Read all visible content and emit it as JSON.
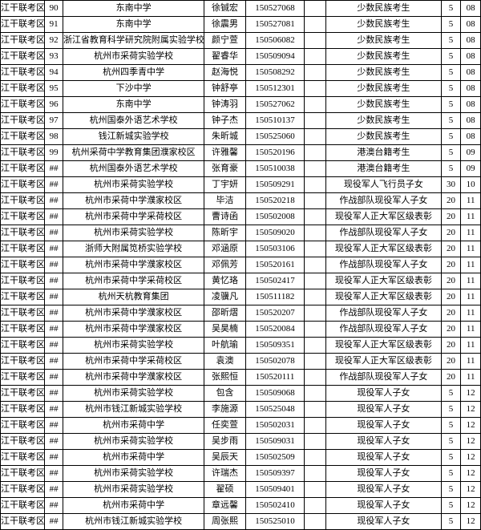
{
  "table": {
    "rows": [
      {
        "c0": "江干联考区",
        "c1": "90",
        "c2": "东南中学",
        "c3": "徐铖宏",
        "c4": "150527068",
        "c5": "",
        "c6": "少数民族考生",
        "c7": "5",
        "c8": "08"
      },
      {
        "c0": "江干联考区",
        "c1": "91",
        "c2": "东南中学",
        "c3": "徐震男",
        "c4": "150527081",
        "c5": "",
        "c6": "少数民族考生",
        "c7": "5",
        "c8": "08"
      },
      {
        "c0": "江干联考区",
        "c1": "92",
        "c2": "浙江省教育科学研究院附属实验学校",
        "c3": "颜宁萱",
        "c4": "150506082",
        "c5": "",
        "c6": "少数民族考生",
        "c7": "5",
        "c8": "08"
      },
      {
        "c0": "江干联考区",
        "c1": "93",
        "c2": "杭州市采荷实验学校",
        "c3": "翟睿华",
        "c4": "150509094",
        "c5": "",
        "c6": "少数民族考生",
        "c7": "5",
        "c8": "08"
      },
      {
        "c0": "江干联考区",
        "c1": "94",
        "c2": "杭州四季青中学",
        "c3": "赵海悦",
        "c4": "150508292",
        "c5": "",
        "c6": "少数民族考生",
        "c7": "5",
        "c8": "08"
      },
      {
        "c0": "江干联考区",
        "c1": "95",
        "c2": "下沙中学",
        "c3": "钟舒亭",
        "c4": "150512301",
        "c5": "",
        "c6": "少数民族考生",
        "c7": "5",
        "c8": "08"
      },
      {
        "c0": "江干联考区",
        "c1": "96",
        "c2": "东南中学",
        "c3": "钟涛羽",
        "c4": "150527062",
        "c5": "",
        "c6": "少数民族考生",
        "c7": "5",
        "c8": "08"
      },
      {
        "c0": "江干联考区",
        "c1": "97",
        "c2": "杭州国泰外语艺术学校",
        "c3": "钟子杰",
        "c4": "150510137",
        "c5": "",
        "c6": "少数民族考生",
        "c7": "5",
        "c8": "08"
      },
      {
        "c0": "江干联考区",
        "c1": "98",
        "c2": "钱江新城实验学校",
        "c3": "朱昕城",
        "c4": "150525060",
        "c5": "",
        "c6": "少数民族考生",
        "c7": "5",
        "c8": "08"
      },
      {
        "c0": "江干联考区",
        "c1": "99",
        "c2": "杭州采荷中学教育集团濮家校区",
        "c3": "许雅馨",
        "c4": "150520196",
        "c5": "",
        "c6": "港澳台籍考生",
        "c7": "5",
        "c8": "09"
      },
      {
        "c0": "江干联考区",
        "c1": "##",
        "c2": "杭州国泰外语艺术学校",
        "c3": "张育豪",
        "c4": "150510038",
        "c5": "",
        "c6": "港澳台籍考生",
        "c7": "5",
        "c8": "09"
      },
      {
        "c0": "江干联考区",
        "c1": "##",
        "c2": "杭州市采荷实验学校",
        "c3": "丁宇妍",
        "c4": "150509291",
        "c5": "",
        "c6": "现役军人飞行员子女",
        "c7": "30",
        "c8": "10"
      },
      {
        "c0": "江干联考区",
        "c1": "##",
        "c2": "杭州市采荷中学濮家校区",
        "c3": "毕洁",
        "c4": "150520218",
        "c5": "",
        "c6": "作战部队现役军人子女",
        "c7": "20",
        "c8": "11"
      },
      {
        "c0": "江干联考区",
        "c1": "##",
        "c2": "杭州市采荷中学采荷校区",
        "c3": "曹诗函",
        "c4": "150502008",
        "c5": "",
        "c6": "现役军人正大军区级表彰",
        "c7": "20",
        "c8": "11"
      },
      {
        "c0": "江干联考区",
        "c1": "##",
        "c2": "杭州市采荷实验学校",
        "c3": "陈昕宇",
        "c4": "150509020",
        "c5": "",
        "c6": "作战部队现役军人子女",
        "c7": "20",
        "c8": "11"
      },
      {
        "c0": "江干联考区",
        "c1": "##",
        "c2": "浙师大附属笕桥实验学校",
        "c3": "邓涵原",
        "c4": "150503106",
        "c5": "",
        "c6": "现役军人正大军区级表彰",
        "c7": "20",
        "c8": "11"
      },
      {
        "c0": "江干联考区",
        "c1": "##",
        "c2": "杭州市采荷中学濮家校区",
        "c3": "邓佩芳",
        "c4": "150520161",
        "c5": "",
        "c6": "作战部队现役军人子女",
        "c7": "20",
        "c8": "11"
      },
      {
        "c0": "江干联考区",
        "c1": "##",
        "c2": "杭州市采荷中学采荷校区",
        "c3": "黄忆珞",
        "c4": "150502417",
        "c5": "",
        "c6": "现役军人正大军区级表彰",
        "c7": "20",
        "c8": "11"
      },
      {
        "c0": "江干联考区",
        "c1": "##",
        "c2": "杭州天杭教育集团",
        "c3": "凌骥凡",
        "c4": "150511182",
        "c5": "",
        "c6": "现役军人正大军区级表彰",
        "c7": "20",
        "c8": "11"
      },
      {
        "c0": "江干联考区",
        "c1": "##",
        "c2": "杭州市采荷中学濮家校区",
        "c3": "邵昕熠",
        "c4": "150520207",
        "c5": "",
        "c6": "作战部队现役军人子女",
        "c7": "20",
        "c8": "11"
      },
      {
        "c0": "江干联考区",
        "c1": "##",
        "c2": "杭州市采荷中学濮家校区",
        "c3": "吴昊楠",
        "c4": "150520084",
        "c5": "",
        "c6": "作战部队现役军人子女",
        "c7": "20",
        "c8": "11"
      },
      {
        "c0": "江干联考区",
        "c1": "##",
        "c2": "杭州市采荷实验学校",
        "c3": "叶航瑜",
        "c4": "150509351",
        "c5": "",
        "c6": "现役军人正大军区级表彰",
        "c7": "20",
        "c8": "11"
      },
      {
        "c0": "江干联考区",
        "c1": "##",
        "c2": "杭州市采荷中学采荷校区",
        "c3": "袁澳",
        "c4": "150502078",
        "c5": "",
        "c6": "现役军人正大军区级表彰",
        "c7": "20",
        "c8": "11"
      },
      {
        "c0": "江干联考区",
        "c1": "##",
        "c2": "杭州市采荷中学濮家校区",
        "c3": "张熙恒",
        "c4": "150520111",
        "c5": "",
        "c6": "作战部队现役军人子女",
        "c7": "20",
        "c8": "11"
      },
      {
        "c0": "江干联考区",
        "c1": "##",
        "c2": "杭州市采荷实验学校",
        "c3": "包含",
        "c4": "150509068",
        "c5": "",
        "c6": "现役军人子女",
        "c7": "5",
        "c8": "12"
      },
      {
        "c0": "江干联考区",
        "c1": "##",
        "c2": "杭州市钱江新城实验学校",
        "c3": "李施源",
        "c4": "150525048",
        "c5": "",
        "c6": "现役军人子女",
        "c7": "5",
        "c8": "12"
      },
      {
        "c0": "江干联考区",
        "c1": "##",
        "c2": "杭州市采荷中学",
        "c3": "任奕萱",
        "c4": "150502031",
        "c5": "",
        "c6": "现役军人子女",
        "c7": "5",
        "c8": "12"
      },
      {
        "c0": "江干联考区",
        "c1": "##",
        "c2": "杭州市采荷实验学校",
        "c3": "吴步雨",
        "c4": "150509031",
        "c5": "",
        "c6": "现役军人子女",
        "c7": "5",
        "c8": "12"
      },
      {
        "c0": "江干联考区",
        "c1": "##",
        "c2": "杭州市采荷中学",
        "c3": "吴辰天",
        "c4": "150502509",
        "c5": "",
        "c6": "现役军人子女",
        "c7": "5",
        "c8": "12"
      },
      {
        "c0": "江干联考区",
        "c1": "##",
        "c2": "杭州市采荷实验学校",
        "c3": "许瑞杰",
        "c4": "150509397",
        "c5": "",
        "c6": "现役军人子女",
        "c7": "5",
        "c8": "12"
      },
      {
        "c0": "江干联考区",
        "c1": "##",
        "c2": "杭州市采荷实验学校",
        "c3": "翟硕",
        "c4": "150509401",
        "c5": "",
        "c6": "现役军人子女",
        "c7": "5",
        "c8": "12"
      },
      {
        "c0": "江干联考区",
        "c1": "##",
        "c2": "杭州市采荷中学",
        "c3": "章远馨",
        "c4": "150502410",
        "c5": "",
        "c6": "现役军人子女",
        "c7": "5",
        "c8": "12"
      },
      {
        "c0": "江干联考区",
        "c1": "##",
        "c2": "杭州市钱江新城实验学校",
        "c3": "周张熙",
        "c4": "150525010",
        "c5": "",
        "c6": "现役军人子女",
        "c7": "5",
        "c8": "12"
      }
    ]
  }
}
